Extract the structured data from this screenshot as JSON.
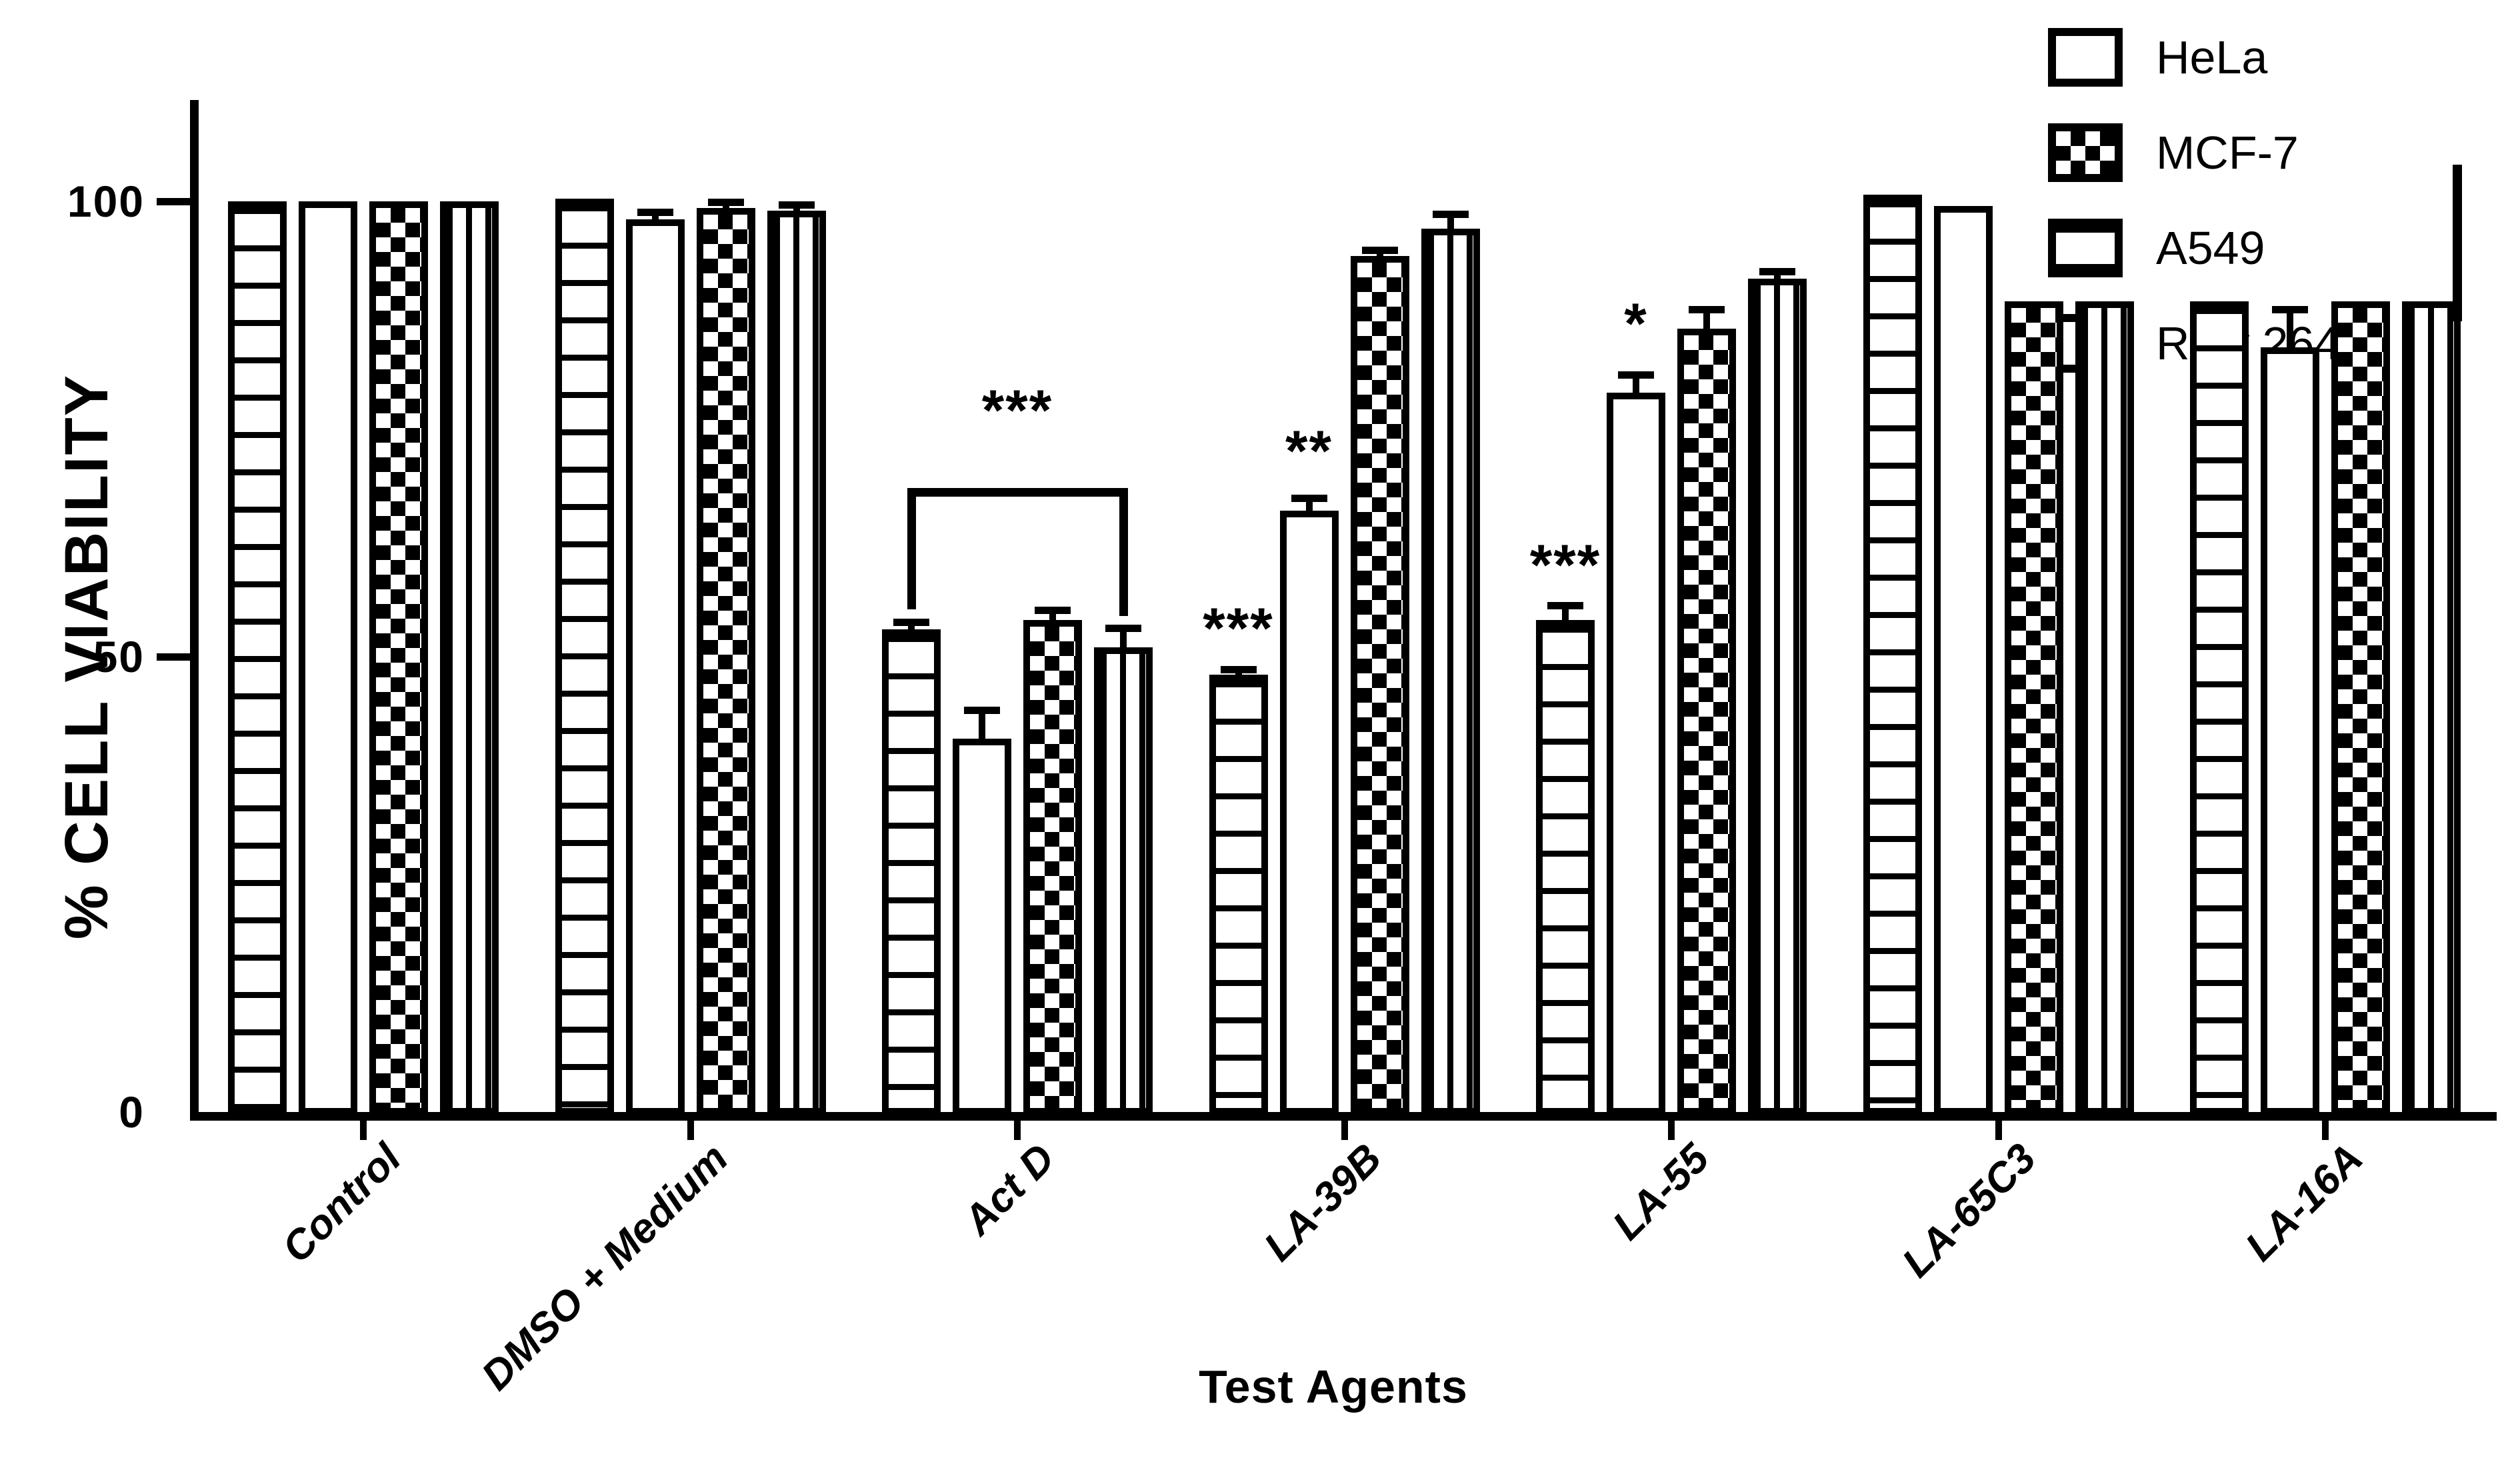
{
  "chart_data": {
    "type": "bar",
    "title": "",
    "xlabel": "Test Agents",
    "ylabel": "% CELL VIABILITY",
    "ylim": [
      0,
      115
    ],
    "yticks": [
      0,
      50,
      100
    ],
    "grid": false,
    "legend_position": "top-right",
    "categories": [
      "Control",
      "DMSO + Medium",
      "Act D",
      "LA-39B",
      "LA-55",
      "LA-65C3",
      "LA-16A"
    ],
    "bar_order": [
      "A549",
      "HeLa",
      "MCF-7",
      "Raw 264.7"
    ],
    "series": [
      {
        "name": "HeLa",
        "pattern": "plain",
        "values": [
          100,
          98,
          41,
          66,
          79,
          99.5,
          84
        ],
        "errors": [
          0,
          1.2,
          3.5,
          1.8,
          2.3,
          0,
          4.5
        ]
      },
      {
        "name": "MCF-7",
        "pattern": "checker",
        "values": [
          100,
          99.3,
          54,
          94,
          86,
          89,
          89
        ],
        "errors": [
          0,
          1.0,
          1.5,
          1.0,
          2.5,
          0,
          0
        ]
      },
      {
        "name": "A549",
        "pattern": "hlines",
        "values": [
          100,
          100.3,
          53,
          48,
          54,
          100.7,
          89
        ],
        "errors": [
          0,
          0,
          1.2,
          1.0,
          2.0,
          0,
          0
        ]
      },
      {
        "name": "Raw 264.7",
        "pattern": "vlines",
        "values": [
          100,
          99,
          51,
          97,
          91.5,
          89,
          89
        ],
        "errors": [
          0,
          1.0,
          2.5,
          2.0,
          1.2,
          0,
          0
        ]
      }
    ],
    "annotations": [
      {
        "type": "bracket",
        "category": "Act D",
        "from": "A549",
        "to": "Raw 264.7",
        "y": 68.5,
        "label": "***",
        "label_y": 75
      },
      {
        "type": "stars",
        "category": "LA-39B",
        "series": "A549",
        "label": "***",
        "y": 51
      },
      {
        "type": "stars",
        "category": "LA-39B",
        "series": "HeLa",
        "label": "**",
        "y": 70.5
      },
      {
        "type": "stars",
        "category": "LA-55",
        "series": "A549",
        "label": "***",
        "y": 58
      },
      {
        "type": "stars",
        "category": "LA-55",
        "series": "HeLa",
        "label": "*",
        "y": 84.5
      }
    ],
    "artifact_line": {
      "category": "LA-16A",
      "series": "Raw 264.7",
      "top_value": 104
    },
    "colors": {
      "ink": "#000000",
      "background": "#ffffff"
    }
  }
}
